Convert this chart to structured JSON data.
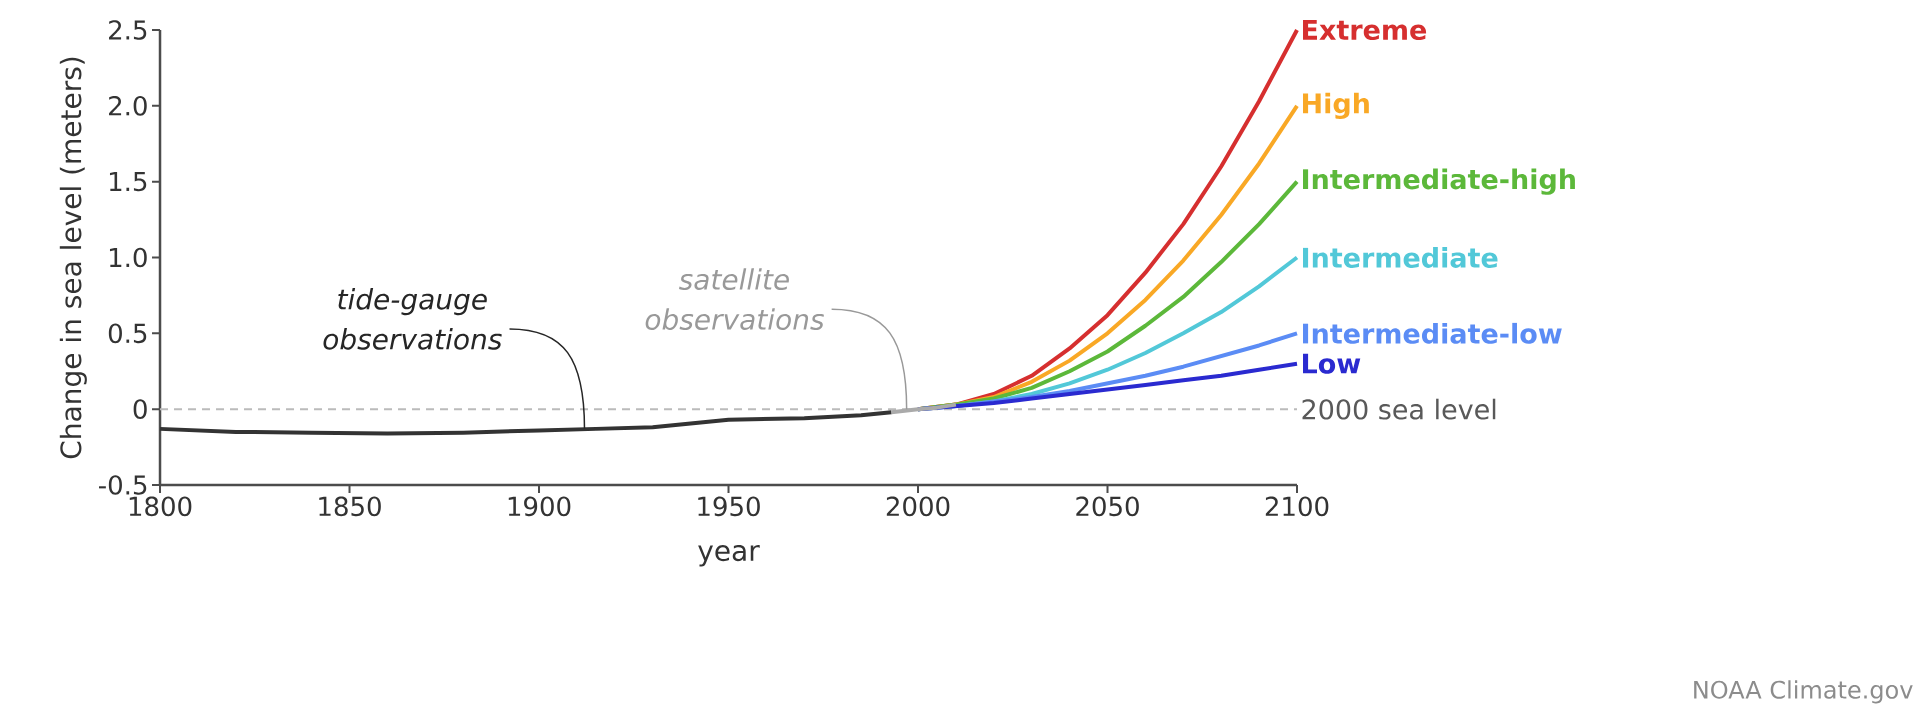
{
  "chart_data": {
    "type": "line",
    "xlabel": "year",
    "ylabel": "Change in sea level (meters)",
    "xlim": [
      1800,
      2100
    ],
    "xticks": [
      1800,
      1850,
      1900,
      1950,
      2000,
      2050,
      2100
    ],
    "ylim": [
      -0.5,
      2.5
    ],
    "yticks": [
      -0.5,
      0,
      0.5,
      {
        "value": 1,
        "label": "1.0"
      },
      1.5,
      {
        "value": 2,
        "label": "2.0"
      },
      2.5
    ],
    "series": [
      {
        "color": "#333333",
        "x": [
          1800,
          1820,
          1840,
          1860,
          1880,
          1900,
          1915,
          1930,
          1950,
          1970,
          1985,
          1993
        ],
        "values": [
          -0.13,
          -0.15,
          -0.155,
          -0.16,
          -0.155,
          -0.14,
          -0.13,
          -0.12,
          -0.07,
          -0.06,
          -0.04,
          -0.02
        ]
      },
      {
        "color": "#aaaaaa",
        "x": [
          1993,
          2000,
          2005,
          2010
        ],
        "values": [
          -0.02,
          0,
          0.01,
          0.03
        ]
      },
      {
        "name": "Extreme",
        "color": "#d62f2f",
        "x": [
          2000,
          2010,
          2020,
          2030,
          2040,
          2050,
          2060,
          2070,
          2080,
          2090,
          2100
        ],
        "values": [
          0,
          0.03,
          0.1,
          0.22,
          0.4,
          0.62,
          0.9,
          1.22,
          1.6,
          2.03,
          2.5
        ]
      },
      {
        "name": "High",
        "color": "#f9a825",
        "x": [
          2000,
          2010,
          2020,
          2030,
          2040,
          2050,
          2060,
          2070,
          2080,
          2090,
          2100
        ],
        "values": [
          0,
          0.03,
          0.08,
          0.18,
          0.32,
          0.5,
          0.72,
          0.98,
          1.28,
          1.62,
          2.0
        ]
      },
      {
        "name": "Intermediate-high",
        "color": "#5cb83a",
        "x": [
          2000,
          2010,
          2020,
          2030,
          2040,
          2050,
          2060,
          2070,
          2080,
          2090,
          2100
        ],
        "values": [
          0,
          0.03,
          0.07,
          0.14,
          0.25,
          0.38,
          0.55,
          0.74,
          0.97,
          1.22,
          1.5
        ]
      },
      {
        "name": "Intermediate",
        "color": "#52c8d8",
        "x": [
          2000,
          2010,
          2020,
          2030,
          2040,
          2050,
          2060,
          2070,
          2080,
          2090,
          2100
        ],
        "values": [
          0,
          0.02,
          0.05,
          0.1,
          0.17,
          0.26,
          0.37,
          0.5,
          0.64,
          0.81,
          1.0
        ]
      },
      {
        "name": "Intermediate-low",
        "color": "#5b8cf5",
        "x": [
          2000,
          2010,
          2020,
          2030,
          2040,
          2050,
          2060,
          2070,
          2080,
          2090,
          2100
        ],
        "values": [
          0,
          0.02,
          0.05,
          0.08,
          0.12,
          0.17,
          0.22,
          0.28,
          0.35,
          0.42,
          0.5
        ]
      },
      {
        "name": "Low",
        "color": "#2a2ad0",
        "x": [
          2000,
          2010,
          2020,
          2030,
          2040,
          2050,
          2060,
          2070,
          2080,
          2090,
          2100
        ],
        "values": [
          0,
          0.02,
          0.04,
          0.07,
          0.1,
          0.13,
          0.16,
          0.19,
          0.22,
          0.26,
          0.3
        ]
      }
    ],
    "ref_lines": [
      {
        "axis": "y",
        "value": 0,
        "label": "2000 sea level",
        "color": "#bbbbbb",
        "line_style": "dashed"
      }
    ],
    "annotations": [
      {
        "text": "tide-gauge observations",
        "x": 1912,
        "y": -0.13
      },
      {
        "text": "satellite observations",
        "x": 1997,
        "y": 0
      },
      "NOAA Climate.gov"
    ]
  }
}
